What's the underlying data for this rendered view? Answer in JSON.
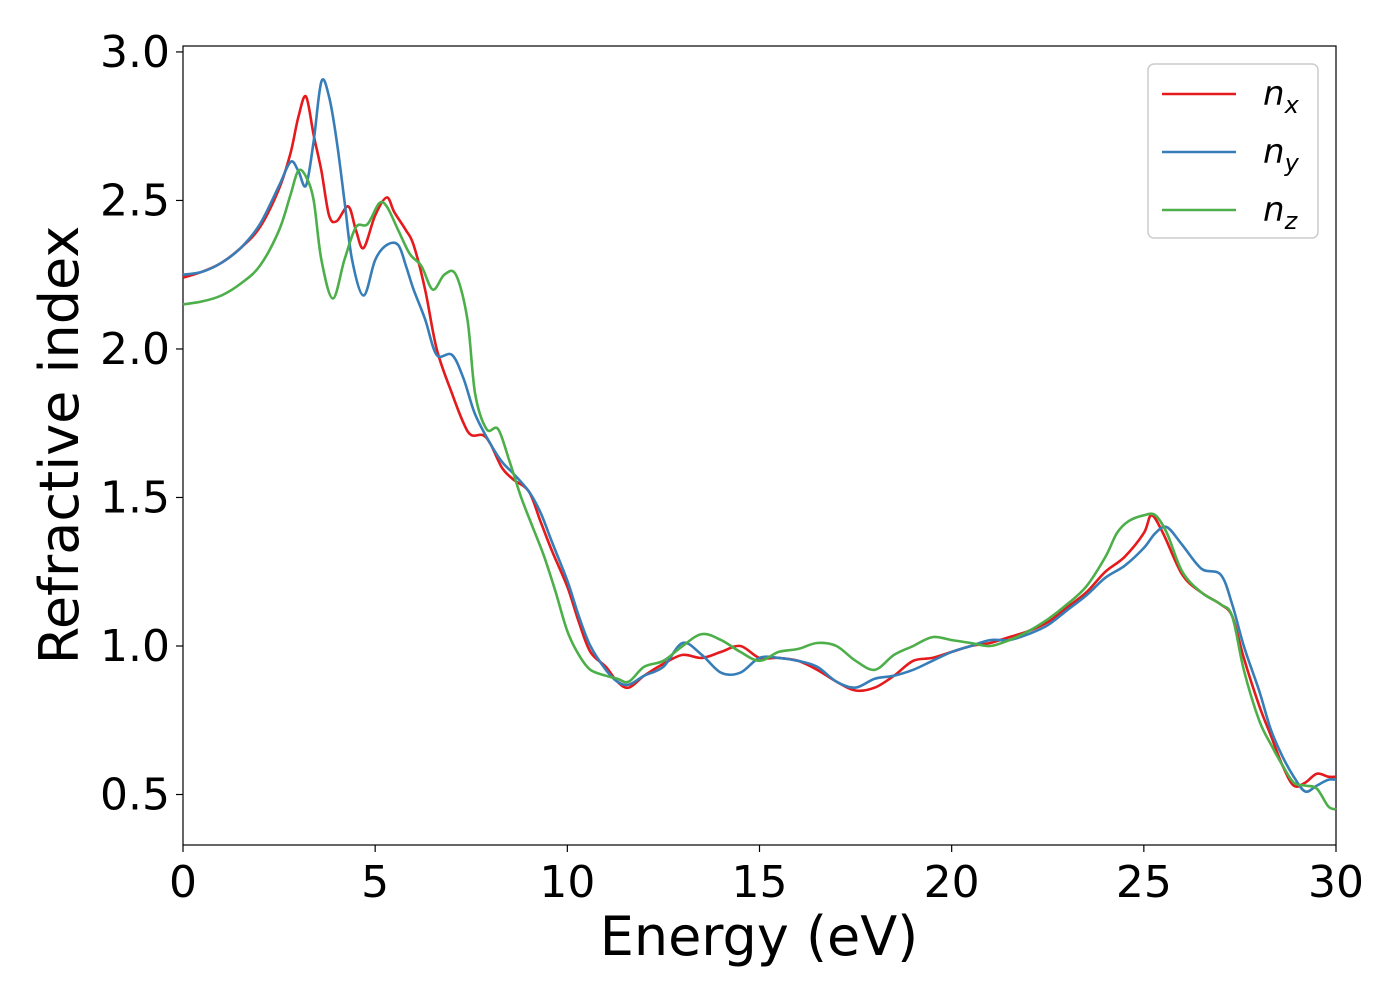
{
  "chart_data": {
    "type": "line",
    "xlabel": "Energy (eV)",
    "ylabel": "Refractive index",
    "xlim": [
      0,
      30
    ],
    "ylim": [
      0.33,
      3.02
    ],
    "xticks": [
      "0",
      "5",
      "10",
      "15",
      "20",
      "25",
      "30"
    ],
    "yticks": [
      "0.5",
      "1.0",
      "1.5",
      "2.0",
      "2.5",
      "3.0"
    ],
    "grid": false,
    "legend_position": "top-right",
    "series": [
      {
        "name": "n",
        "subscript": "x",
        "color": "#e41a1c",
        "x": [
          0,
          0.5,
          1,
          1.5,
          2,
          2.5,
          2.8,
          3.0,
          3.2,
          3.4,
          3.6,
          3.8,
          4.0,
          4.3,
          4.5,
          4.7,
          5.0,
          5.3,
          5.5,
          5.8,
          6.0,
          6.3,
          6.6,
          7.0,
          7.3,
          7.5,
          7.8,
          8.0,
          8.3,
          8.6,
          9.0,
          9.3,
          9.6,
          10.0,
          10.3,
          10.6,
          11.0,
          11.3,
          11.6,
          12.0,
          12.5,
          13.0,
          13.5,
          14.0,
          14.5,
          15.0,
          15.5,
          16.0,
          16.5,
          17.0,
          17.5,
          18.0,
          18.5,
          19.0,
          19.5,
          20.0,
          20.5,
          21.0,
          21.5,
          22.0,
          22.5,
          23.0,
          23.5,
          24.0,
          24.5,
          25.0,
          25.2,
          25.5,
          26.0,
          26.5,
          27.0,
          27.3,
          27.6,
          28.0,
          28.3,
          28.6,
          28.9,
          29.2,
          29.5,
          29.8,
          30.0
        ],
        "y": [
          2.24,
          2.26,
          2.29,
          2.34,
          2.41,
          2.54,
          2.66,
          2.78,
          2.85,
          2.72,
          2.6,
          2.45,
          2.43,
          2.48,
          2.4,
          2.34,
          2.45,
          2.51,
          2.46,
          2.4,
          2.35,
          2.2,
          2.0,
          1.85,
          1.75,
          1.71,
          1.71,
          1.68,
          1.6,
          1.56,
          1.52,
          1.42,
          1.32,
          1.2,
          1.08,
          0.98,
          0.93,
          0.88,
          0.86,
          0.9,
          0.94,
          0.97,
          0.96,
          0.98,
          1.0,
          0.96,
          0.96,
          0.95,
          0.92,
          0.88,
          0.85,
          0.86,
          0.9,
          0.95,
          0.96,
          0.98,
          1.0,
          1.01,
          1.03,
          1.05,
          1.08,
          1.13,
          1.18,
          1.25,
          1.3,
          1.38,
          1.44,
          1.38,
          1.24,
          1.18,
          1.14,
          1.1,
          0.96,
          0.8,
          0.7,
          0.6,
          0.53,
          0.54,
          0.57,
          0.56,
          0.56
        ]
      },
      {
        "name": "n",
        "subscript": "y",
        "color": "#377eb8",
        "x": [
          0,
          0.5,
          1,
          1.5,
          2,
          2.5,
          2.8,
          3.0,
          3.2,
          3.4,
          3.6,
          3.8,
          4.0,
          4.2,
          4.4,
          4.7,
          5.0,
          5.3,
          5.6,
          5.8,
          6.0,
          6.3,
          6.6,
          7.0,
          7.3,
          7.6,
          8.0,
          8.3,
          8.6,
          9.0,
          9.3,
          9.6,
          10.0,
          10.3,
          10.6,
          11.0,
          11.3,
          11.6,
          12.0,
          12.5,
          13.0,
          13.5,
          14.0,
          14.5,
          15.0,
          15.5,
          16.0,
          16.5,
          17.0,
          17.5,
          18.0,
          18.5,
          19.0,
          19.5,
          20.0,
          20.5,
          21.0,
          21.5,
          22.0,
          22.5,
          23.0,
          23.5,
          24.0,
          24.5,
          25.0,
          25.3,
          25.6,
          26.0,
          26.5,
          27.0,
          27.3,
          27.6,
          28.0,
          28.3,
          28.6,
          28.9,
          29.2,
          29.5,
          29.8,
          30.0
        ],
        "y": [
          2.25,
          2.26,
          2.29,
          2.34,
          2.42,
          2.55,
          2.63,
          2.6,
          2.55,
          2.7,
          2.9,
          2.85,
          2.7,
          2.5,
          2.3,
          2.18,
          2.3,
          2.35,
          2.35,
          2.28,
          2.2,
          2.1,
          1.98,
          1.98,
          1.9,
          1.78,
          1.68,
          1.62,
          1.58,
          1.52,
          1.45,
          1.35,
          1.22,
          1.1,
          1.0,
          0.92,
          0.88,
          0.87,
          0.9,
          0.93,
          1.01,
          0.97,
          0.91,
          0.91,
          0.96,
          0.96,
          0.95,
          0.93,
          0.88,
          0.86,
          0.89,
          0.9,
          0.92,
          0.95,
          0.98,
          1.0,
          1.02,
          1.02,
          1.04,
          1.07,
          1.12,
          1.17,
          1.23,
          1.27,
          1.33,
          1.38,
          1.4,
          1.34,
          1.26,
          1.24,
          1.14,
          1.0,
          0.85,
          0.72,
          0.63,
          0.56,
          0.51,
          0.53,
          0.55,
          0.55
        ]
      },
      {
        "name": "n",
        "subscript": "z",
        "color": "#4daf4a",
        "x": [
          0,
          0.5,
          1,
          1.5,
          2,
          2.5,
          2.8,
          3.0,
          3.2,
          3.4,
          3.6,
          3.9,
          4.2,
          4.5,
          4.8,
          5.1,
          5.3,
          5.6,
          5.9,
          6.2,
          6.5,
          6.8,
          7.1,
          7.4,
          7.6,
          7.9,
          8.2,
          8.5,
          8.8,
          9.1,
          9.4,
          9.7,
          10.0,
          10.3,
          10.6,
          11.0,
          11.3,
          11.6,
          12.0,
          12.5,
          13.0,
          13.5,
          14.0,
          14.5,
          15.0,
          15.5,
          16.0,
          16.5,
          17.0,
          17.5,
          18.0,
          18.5,
          19.0,
          19.5,
          20.0,
          20.5,
          21.0,
          21.5,
          22.0,
          22.5,
          23.0,
          23.5,
          24.0,
          24.3,
          24.6,
          25.0,
          25.3,
          25.6,
          26.0,
          26.5,
          27.0,
          27.3,
          27.6,
          28.0,
          28.3,
          28.6,
          28.9,
          29.2,
          29.5,
          29.8,
          30.0
        ],
        "y": [
          2.15,
          2.16,
          2.18,
          2.22,
          2.28,
          2.4,
          2.52,
          2.6,
          2.58,
          2.5,
          2.3,
          2.17,
          2.3,
          2.41,
          2.42,
          2.49,
          2.48,
          2.4,
          2.32,
          2.28,
          2.2,
          2.25,
          2.25,
          2.1,
          1.85,
          1.73,
          1.73,
          1.62,
          1.5,
          1.4,
          1.3,
          1.18,
          1.05,
          0.97,
          0.92,
          0.9,
          0.89,
          0.88,
          0.93,
          0.95,
          1.0,
          1.04,
          1.02,
          0.98,
          0.95,
          0.98,
          0.99,
          1.01,
          1.0,
          0.95,
          0.92,
          0.97,
          1.0,
          1.03,
          1.02,
          1.01,
          1.0,
          1.02,
          1.05,
          1.09,
          1.14,
          1.2,
          1.3,
          1.38,
          1.42,
          1.44,
          1.44,
          1.38,
          1.25,
          1.18,
          1.14,
          1.1,
          0.92,
          0.75,
          0.67,
          0.6,
          0.54,
          0.53,
          0.52,
          0.46,
          0.45
        ]
      }
    ]
  }
}
